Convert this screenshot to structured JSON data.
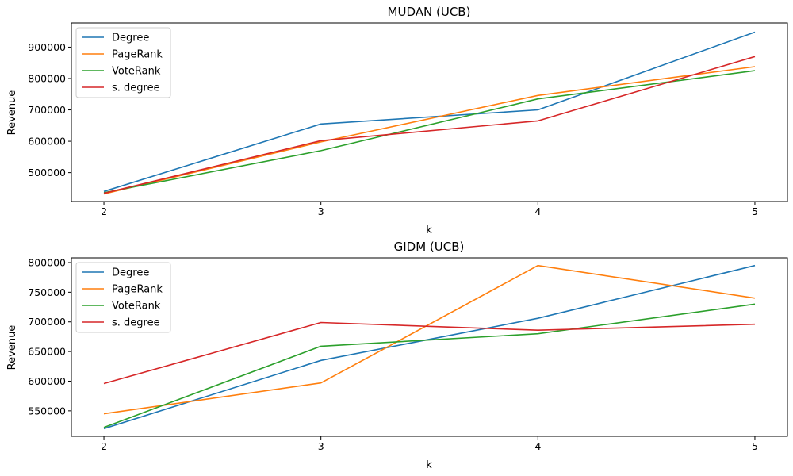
{
  "chart_data": [
    {
      "type": "line",
      "title": "MUDAN (UCB)",
      "xlabel": "k",
      "ylabel": "Revenue",
      "x": [
        2,
        3,
        4,
        5
      ],
      "xticks": [
        "2",
        "3",
        "4",
        "5"
      ],
      "xlim": [
        1.85,
        5.15
      ],
      "ylim": [
        408000,
        977000
      ],
      "yticks": [
        500000,
        600000,
        700000,
        800000,
        900000
      ],
      "ytick_labels": [
        "500000",
        "600000",
        "700000",
        "800000",
        "900000"
      ],
      "grid": false,
      "legend_position": "top-left",
      "series": [
        {
          "name": "Degree",
          "color": "#1f77b4",
          "values": [
            440000,
            655000,
            700000,
            948000
          ]
        },
        {
          "name": "PageRank",
          "color": "#ff7f0e",
          "values": [
            432000,
            598000,
            746000,
            838000
          ]
        },
        {
          "name": "VoteRank",
          "color": "#2ca02c",
          "values": [
            436000,
            570000,
            735000,
            825000
          ]
        },
        {
          "name": "s. degree",
          "color": "#d62728",
          "values": [
            434000,
            602000,
            665000,
            870000
          ]
        }
      ]
    },
    {
      "type": "line",
      "title": "GIDM (UCB)",
      "xlabel": "k",
      "ylabel": "Revenue",
      "x": [
        2,
        3,
        4,
        5
      ],
      "xticks": [
        "2",
        "3",
        "4",
        "5"
      ],
      "xlim": [
        1.85,
        5.15
      ],
      "ylim": [
        507000,
        808000
      ],
      "yticks": [
        550000,
        600000,
        650000,
        700000,
        750000,
        800000
      ],
      "ytick_labels": [
        "550000",
        "600000",
        "650000",
        "700000",
        "750000",
        "800000"
      ],
      "grid": false,
      "legend_position": "top-left",
      "series": [
        {
          "name": "Degree",
          "color": "#1f77b4",
          "values": [
            520000,
            635000,
            706000,
            795000
          ]
        },
        {
          "name": "PageRank",
          "color": "#ff7f0e",
          "values": [
            545000,
            597000,
            795000,
            740000
          ]
        },
        {
          "name": "VoteRank",
          "color": "#2ca02c",
          "values": [
            522000,
            659000,
            680000,
            730000
          ]
        },
        {
          "name": "s. degree",
          "color": "#d62728",
          "values": [
            596000,
            699000,
            686000,
            696000
          ]
        }
      ]
    }
  ]
}
